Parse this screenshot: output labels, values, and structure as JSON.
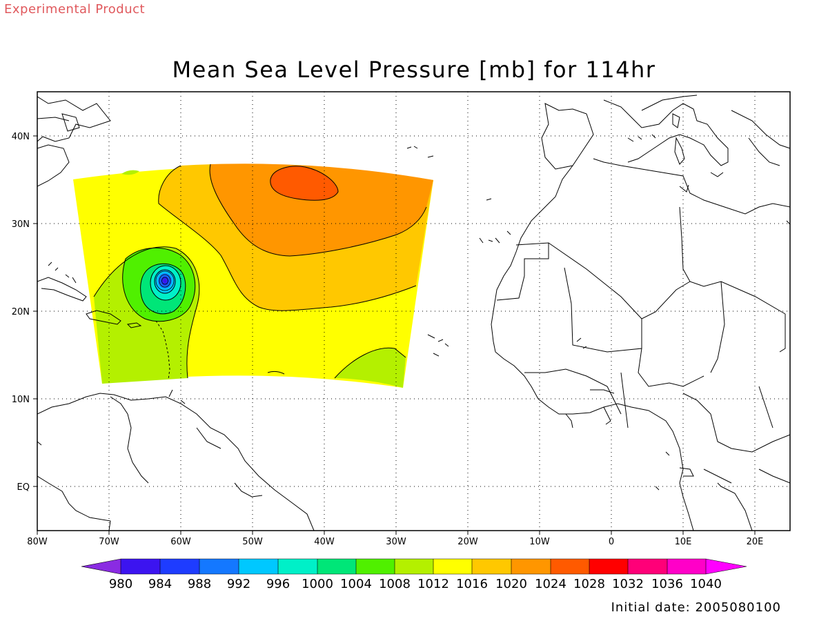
{
  "header": {
    "product_label": "Experimental Product",
    "title": "Mean Sea Level Pressure [mb] for 114hr"
  },
  "footer": {
    "initial_date": "Initial date: 2005080100"
  },
  "map": {
    "lon_labels": [
      "80W",
      "70W",
      "60W",
      "50W",
      "40W",
      "30W",
      "20W",
      "10W",
      "0",
      "10E",
      "20E"
    ],
    "lat_labels": [
      "40N",
      "30N",
      "20N",
      "10N",
      "EQ"
    ],
    "lon_range": [
      -80,
      25
    ],
    "lat_range": [
      -5,
      45
    ]
  },
  "colorbar": {
    "levels": [
      "980",
      "984",
      "988",
      "992",
      "996",
      "1000",
      "1004",
      "1008",
      "1012",
      "1016",
      "1020",
      "1024",
      "1028",
      "1032",
      "1036",
      "1040"
    ],
    "colors": [
      "#8a2be2",
      "#3c14f0",
      "#1e3cff",
      "#1478ff",
      "#00c8ff",
      "#00f0c8",
      "#00e678",
      "#50f000",
      "#b4f000",
      "#ffff00",
      "#ffc800",
      "#ff9600",
      "#ff5a00",
      "#ff0000",
      "#ff0078",
      "#ff00c8",
      "#ff00ff"
    ]
  },
  "chart_data": {
    "type": "heatmap",
    "title": "Mean Sea Level Pressure [mb] for 114hr",
    "domain_lon": [
      -75,
      -25
    ],
    "domain_lat": [
      12,
      36
    ],
    "features": [
      {
        "label": "High",
        "lon": -44,
        "lat": 35,
        "value_range": "1024-1028"
      },
      {
        "label": "Low",
        "lon": -62,
        "lat": 23.5,
        "value_range": "<992"
      }
    ]
  }
}
